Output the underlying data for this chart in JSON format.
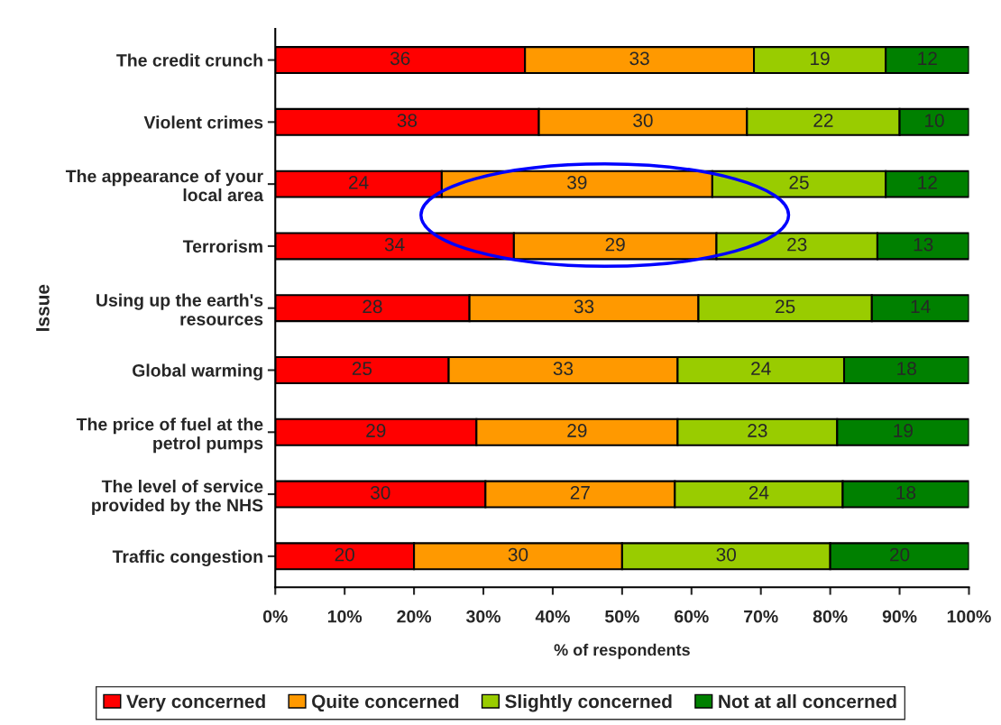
{
  "chart_data": {
    "type": "bar",
    "orientation": "horizontal",
    "stacked": true,
    "xlabel": "% of respondents",
    "ylabel": "Issue",
    "categories": [
      "The credit crunch",
      "Violent crimes",
      "The appearance of your\nlocal area",
      "Terrorism",
      "Using up the earth's\nresources",
      "Global warming",
      "The price of fuel at the\npetrol pumps",
      "The level of service\nprovided by the NHS",
      "Traffic congestion"
    ],
    "series": [
      {
        "name": "Very concerned",
        "color": "#ff0000",
        "values": [
          36,
          38,
          24,
          34.4,
          28,
          25,
          29,
          30.3,
          20
        ],
        "value_labels": [
          "36",
          "38",
          "24",
          "34",
          "28",
          "25",
          "29",
          "30",
          "20"
        ]
      },
      {
        "name": "Quite concerned",
        "color": "#ff9900",
        "values": [
          33,
          30,
          39,
          29.2,
          33,
          33,
          29,
          27.3,
          30
        ],
        "value_labels": [
          "33",
          "30",
          "39",
          "29",
          "33",
          "33",
          "29",
          "27",
          "30"
        ]
      },
      {
        "name": "Slightly concerned",
        "color": "#99cc00",
        "values": [
          19,
          22,
          25,
          23.2,
          25,
          24,
          23,
          24.2,
          30
        ],
        "value_labels": [
          "19",
          "22",
          "25",
          "23",
          "25",
          "24",
          "23",
          "24",
          "30"
        ]
      },
      {
        "name": "Not at all concerned",
        "color": "#008000",
        "values": [
          12,
          10,
          12,
          13.2,
          14,
          18,
          19,
          18.2,
          20
        ],
        "value_labels": [
          "12",
          "10",
          "12",
          "13",
          "14",
          "18",
          "19",
          "18",
          "20"
        ]
      }
    ],
    "xlim": [
      0,
      100
    ],
    "xticks": [
      {
        "value": 0,
        "label": "0%"
      },
      {
        "value": 10,
        "label": "10%"
      },
      {
        "value": 20,
        "label": "20%"
      },
      {
        "value": 30,
        "label": "30%"
      },
      {
        "value": 40,
        "label": "40%"
      },
      {
        "value": 50,
        "label": "50%"
      },
      {
        "value": 60,
        "label": "60%"
      },
      {
        "value": 70,
        "label": "70%"
      },
      {
        "value": 80,
        "label": "80%"
      },
      {
        "value": 90,
        "label": "90%"
      },
      {
        "value": 100,
        "label": "100%"
      }
    ],
    "grid": false,
    "legend": "bottom"
  }
}
